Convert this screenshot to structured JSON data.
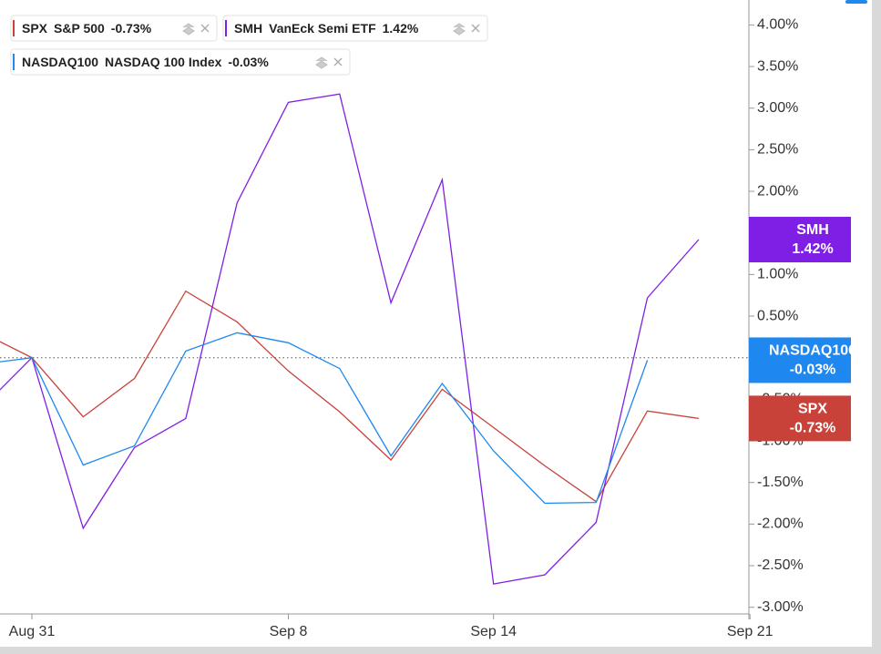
{
  "chart_data": {
    "type": "line",
    "categories": [
      null,
      "Aug 31",
      null,
      null,
      null,
      null,
      "Sep 8",
      null,
      null,
      null,
      "Sep 14",
      null,
      null,
      null,
      null,
      "Sep 21"
    ],
    "series": [
      {
        "name": "SPX",
        "description": "S&P 500",
        "color": "#c9423a",
        "values": [
          0.31,
          0,
          -0.71,
          -0.25,
          0.8,
          0.43,
          -0.16,
          -0.65,
          -1.23,
          -0.38,
          -0.84,
          -1.3,
          -1.73,
          -0.64,
          -0.73,
          null
        ],
        "end_label": {
          "value": -0.73,
          "label": "-0.73%"
        }
      },
      {
        "name": "SMH",
        "description": "VanEck Semi ETF",
        "color": "#7f1fe6",
        "values": [
          -0.62,
          0,
          -2.05,
          -1.08,
          -0.73,
          1.86,
          3.07,
          3.17,
          0.66,
          2.14,
          -2.72,
          -2.61,
          -1.98,
          0.72,
          1.42,
          null
        ],
        "end_label": {
          "value": 1.42,
          "label": "1.42%"
        }
      },
      {
        "name": "NASDAQ100",
        "description": "NASDAQ 100 Index",
        "color": "#1e88f0",
        "values": [
          -0.08,
          0,
          -1.29,
          -1.06,
          0.08,
          0.3,
          0.18,
          -0.13,
          -1.18,
          -0.31,
          -1.12,
          -1.75,
          -1.74,
          -0.03,
          null,
          null
        ],
        "end_label": {
          "value": -0.03,
          "label": "-0.03%"
        }
      }
    ],
    "ylim": [
      -3.08,
      4.3
    ],
    "yticks": [
      {
        "value": 4.0,
        "label": "4.00%"
      },
      {
        "value": 3.5,
        "label": "3.50%"
      },
      {
        "value": 3.0,
        "label": "3.00%"
      },
      {
        "value": 2.5,
        "label": "2.50%"
      },
      {
        "value": 2.0,
        "label": "2.00%"
      },
      {
        "value": 1.5,
        "label": "1.50%"
      },
      {
        "value": 1.0,
        "label": "1.00%"
      },
      {
        "value": 0.5,
        "label": "0.50%"
      },
      {
        "value": 0.0,
        "label": "0.00%"
      },
      {
        "value": -0.5,
        "label": "-0.50%"
      },
      {
        "value": -1.0,
        "label": "-1.00%"
      },
      {
        "value": -1.5,
        "label": "-1.50%"
      },
      {
        "value": -2.0,
        "label": "-2.00%"
      },
      {
        "value": -2.5,
        "label": "-2.50%"
      },
      {
        "value": -3.0,
        "label": "-3.00%"
      }
    ],
    "reference_line": 0
  }
}
